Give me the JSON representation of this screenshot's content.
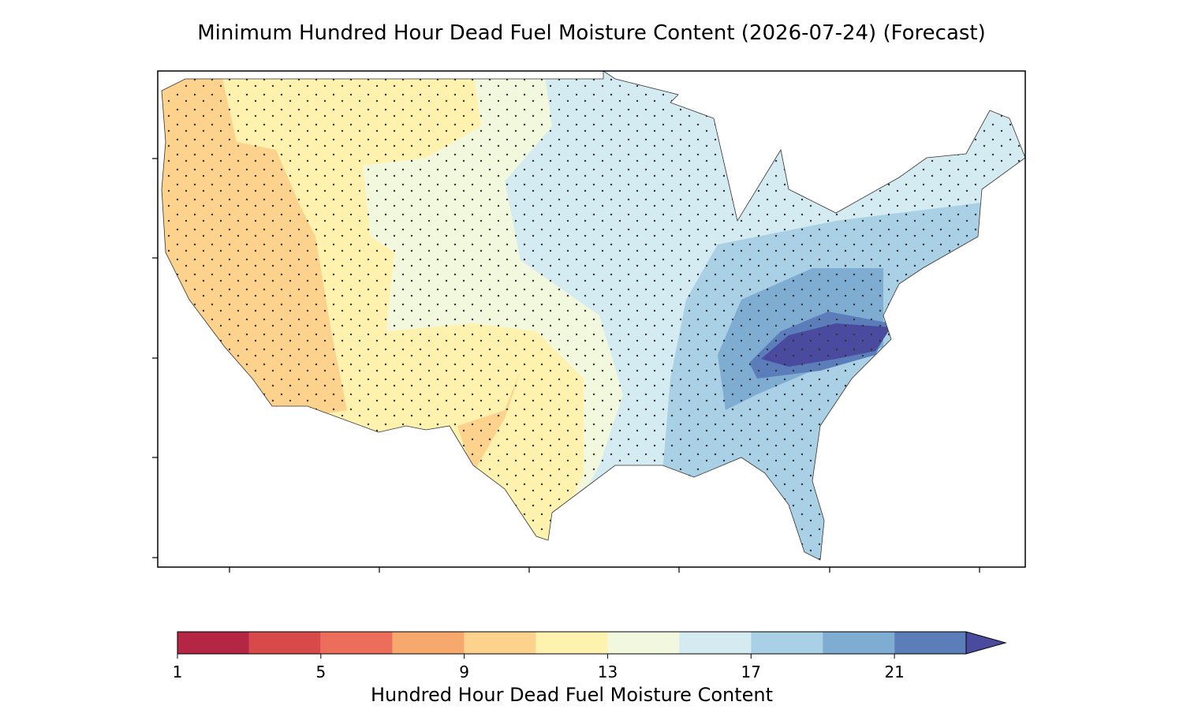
{
  "title": "Minimum Hundred Hour Dead Fuel Moisture Content (2026-07-24) (Forecast)",
  "colorbar": {
    "label": "Hundred Hour Dead Fuel Moisture Content",
    "boundaries": [
      1,
      3,
      5,
      7,
      9,
      11,
      13,
      15,
      17,
      19,
      21,
      23
    ],
    "colors": [
      "#b52544",
      "#d84a4a",
      "#ec6d5a",
      "#f7a86c",
      "#fdd28c",
      "#fef2ae",
      "#f1f8dd",
      "#d5ebf2",
      "#a9d0e4",
      "#7fadd2",
      "#5b7ebb"
    ],
    "extend_color": "#4a4a9e",
    "ticks": [
      1,
      5,
      9,
      13,
      17,
      21
    ]
  }
}
